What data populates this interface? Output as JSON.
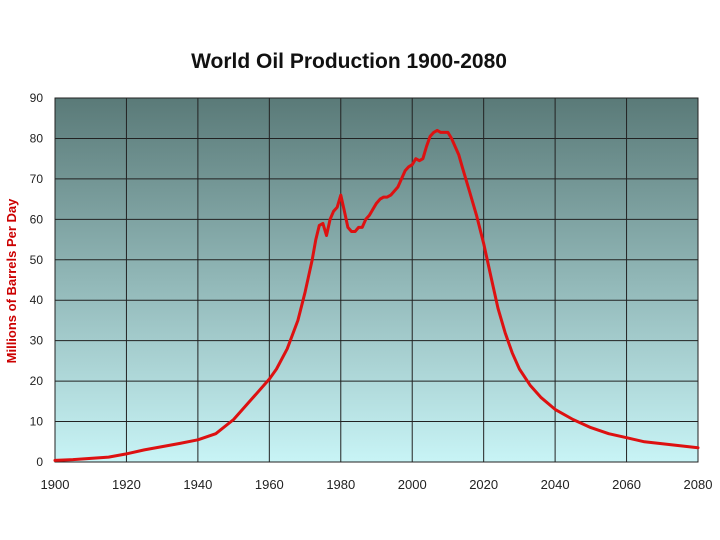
{
  "chart_data": {
    "type": "line",
    "title": "World Oil Production 1900-2080",
    "xlabel": "",
    "ylabel": "Millions of Barrels Per Day",
    "xlim": [
      1900,
      2080
    ],
    "ylim": [
      0,
      90
    ],
    "x_ticks": [
      1900,
      1920,
      1940,
      1960,
      1980,
      2000,
      2020,
      2040,
      2060,
      2080
    ],
    "y_ticks": [
      0,
      10,
      20,
      30,
      40,
      50,
      60,
      70,
      80,
      90
    ],
    "grid": true,
    "legend": "none",
    "background_gradient": [
      "#5a7a78",
      "#c8f4f6"
    ],
    "series_color": "#dd1111",
    "series": [
      {
        "x": [
          1900,
          1905,
          1910,
          1915,
          1920,
          1925,
          1930,
          1935,
          1940,
          1945,
          1950,
          1955,
          1960,
          1962,
          1965,
          1968,
          1970,
          1972,
          1973,
          1974,
          1975,
          1976,
          1977,
          1978,
          1979,
          1980,
          1981,
          1982,
          1983,
          1984,
          1985,
          1986,
          1987,
          1988,
          1989,
          1990,
          1991,
          1992,
          1993,
          1994,
          1995,
          1996,
          1997,
          1998,
          1999,
          2000,
          2001,
          2002,
          2003,
          2004,
          2005,
          2006,
          2007,
          2008,
          2009,
          2010,
          2011,
          2012,
          2013,
          2014,
          2015,
          2016,
          2018,
          2020,
          2022,
          2024,
          2026,
          2028,
          2030,
          2033,
          2036,
          2040,
          2045,
          2050,
          2055,
          2060,
          2065,
          2070,
          2075,
          2080
        ],
        "y": [
          0.4,
          0.6,
          0.9,
          1.2,
          2.0,
          3.0,
          3.8,
          4.6,
          5.5,
          7.0,
          10.5,
          15.5,
          20.5,
          23,
          28,
          35,
          42,
          50,
          55,
          58.5,
          59,
          56,
          60,
          62,
          63,
          66,
          62,
          58,
          57,
          57,
          58,
          58,
          60,
          61,
          62.5,
          64,
          65,
          65.5,
          65.5,
          66,
          67,
          68,
          70,
          72,
          73,
          73.5,
          75,
          74.5,
          75,
          78,
          80.5,
          81.5,
          82,
          81.5,
          81.5,
          81.5,
          80,
          78,
          76,
          73,
          70,
          67,
          61,
          54,
          46,
          38,
          32,
          27,
          23,
          19,
          16,
          13,
          10.5,
          8.5,
          7,
          6,
          5,
          4.5,
          4,
          3.5
        ]
      }
    ]
  }
}
